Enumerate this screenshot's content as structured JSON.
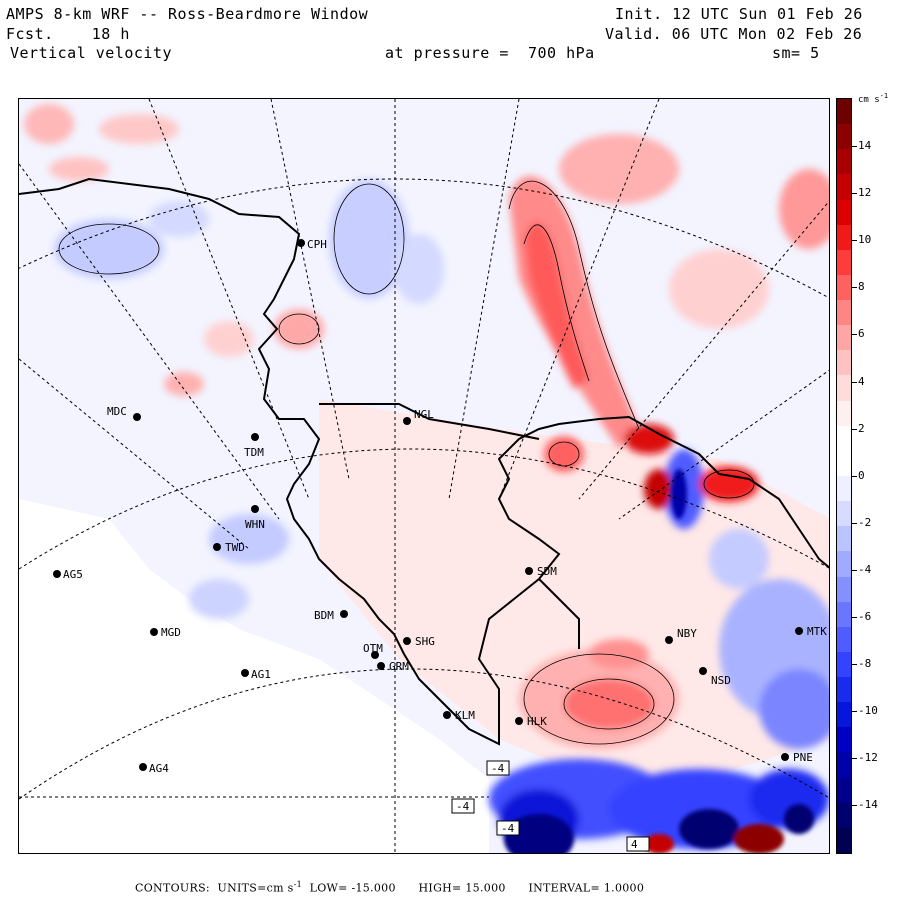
{
  "header": {
    "title": "AMPS 8-km WRF -- Ross-Beardmore Window",
    "fcst_label": "Fcst.",
    "fcst_value": "18 h",
    "variable": "Vertical velocity",
    "pressure_label": "at pressure =",
    "pressure_value": "700 hPa",
    "init": "Init. 12 UTC Sun 01 Feb 26",
    "valid": "Valid. 06 UTC Mon 02 Feb 26",
    "smoothing": "sm= 5"
  },
  "colorbar": {
    "units_label": "cm s",
    "units_exp": "-1",
    "ticks": [
      "14",
      "12",
      "10",
      "8",
      "6",
      "4",
      "2",
      "0",
      "-2",
      "-4",
      "-6",
      "-8",
      "-10",
      "-12",
      "-14"
    ],
    "colors": [
      "#6e0000",
      "#8c0000",
      "#a80000",
      "#c40000",
      "#dd0000",
      "#f01a1a",
      "#ff3c3c",
      "#ff6060",
      "#ff8585",
      "#ffa5a5",
      "#ffc2c2",
      "#ffdcdc",
      "#fff0f0",
      "#ffffff",
      "#ffffff",
      "#eef0ff",
      "#d6dbff",
      "#bcc4ff",
      "#a0abff",
      "#8590ff",
      "#6a76ff",
      "#4f5cff",
      "#3443ff",
      "#1a2bf0",
      "#0616dd",
      "#0000c4",
      "#0000a8",
      "#00008c",
      "#00006e",
      "#000052"
    ]
  },
  "stations": [
    {
      "id": "CPH",
      "label": "CPH"
    },
    {
      "id": "NGL",
      "label": "NGL"
    },
    {
      "id": "MDC",
      "label": "MDC"
    },
    {
      "id": "TDM",
      "label": "TDM"
    },
    {
      "id": "WHN",
      "label": "WHN"
    },
    {
      "id": "TWD",
      "label": "TWD"
    },
    {
      "id": "AG5",
      "label": "AG5"
    },
    {
      "id": "SDM",
      "label": "SDM"
    },
    {
      "id": "BDM",
      "label": "BDM"
    },
    {
      "id": "MGD",
      "label": "MGD"
    },
    {
      "id": "SHG",
      "label": "SHG"
    },
    {
      "id": "OTM",
      "label": "OTM"
    },
    {
      "id": "GRM",
      "label": "GRM"
    },
    {
      "id": "AG1",
      "label": "AG1"
    },
    {
      "id": "NBY",
      "label": "NBY"
    },
    {
      "id": "MTK",
      "label": "MTK"
    },
    {
      "id": "NSD",
      "label": "NSD"
    },
    {
      "id": "KLM",
      "label": "KLM"
    },
    {
      "id": "HLK",
      "label": "HLK"
    },
    {
      "id": "PNE",
      "label": "PNE"
    },
    {
      "id": "AG4",
      "label": "AG4"
    }
  ],
  "contour_labels": [
    "-4",
    "-4",
    "-4",
    "4"
  ],
  "footer": {
    "contours": "CONTOURS:",
    "units_label": "UNITS=cm s",
    "units_exp": "-1",
    "low_label": "LOW=",
    "low_value": "-15.000",
    "high_label": "HIGH=",
    "high_value": "15.000",
    "interval_label": "INTERVAL=",
    "interval_value": "1.0000"
  }
}
